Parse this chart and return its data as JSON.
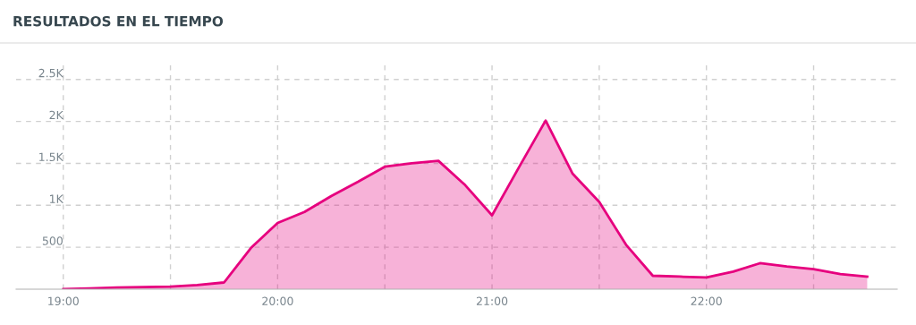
{
  "chart_data": {
    "type": "area",
    "title": "RESULTADOS EN EL TIEMPO",
    "x": [
      19.0,
      19.125,
      19.25,
      19.375,
      19.5,
      19.625,
      19.75,
      19.875,
      20.0,
      20.125,
      20.25,
      20.375,
      20.5,
      20.625,
      20.75,
      20.875,
      21.0,
      21.125,
      21.25,
      21.375,
      21.5,
      21.625,
      21.75,
      21.875,
      22.0,
      22.125,
      22.25,
      22.375,
      22.5,
      22.625,
      22.75
    ],
    "series": [
      {
        "color": "#e6007e",
        "values": [
          0,
          10,
          20,
          25,
          30,
          50,
          80,
          490,
          790,
          920,
          1110,
          1280,
          1460,
          1500,
          1530,
          1240,
          880,
          1450,
          2010,
          1380,
          1040,
          530,
          160,
          150,
          140,
          210,
          310,
          270,
          240,
          180,
          150
        ]
      }
    ],
    "xlim": [
      18.78,
      22.89
    ],
    "xticks": [
      {
        "value": 19,
        "label": "19:00"
      },
      {
        "value": 19.5,
        "label": null
      },
      {
        "value": 20,
        "label": "20:00"
      },
      {
        "value": 20.5,
        "label": null
      },
      {
        "value": 21,
        "label": "21:00"
      },
      {
        "value": 21.5,
        "label": null
      },
      {
        "value": 22,
        "label": "22:00"
      },
      {
        "value": 22.5,
        "label": null
      }
    ],
    "ylim": [
      0,
      2700
    ],
    "yticks": [
      {
        "value": 500,
        "label": "500"
      },
      {
        "value": 1000,
        "label": "1K"
      },
      {
        "value": 1500,
        "label": "1.5K"
      },
      {
        "value": 2000,
        "label": "2K"
      },
      {
        "value": 2500,
        "label": "2.5K"
      }
    ],
    "grid": true,
    "line_style": "solid",
    "marker": "none"
  }
}
